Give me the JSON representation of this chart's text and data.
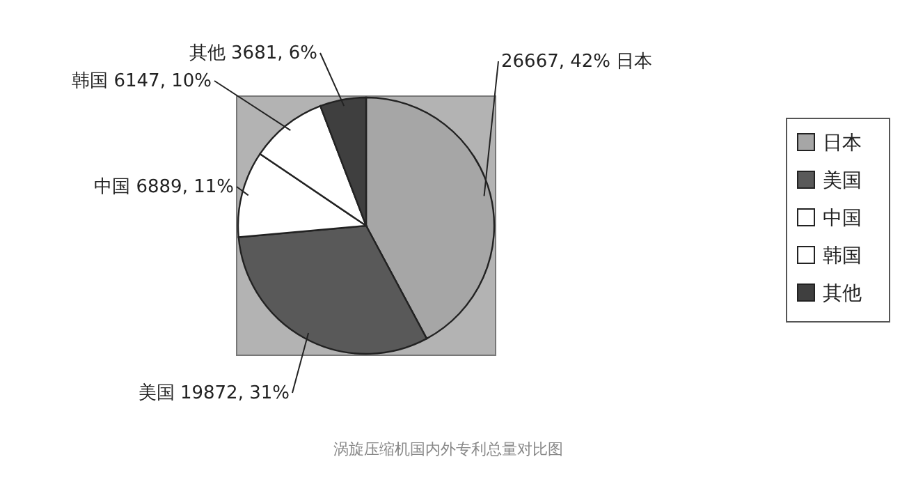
{
  "chart_data": {
    "type": "pie",
    "categories": [
      "日本",
      "美国",
      "中国",
      "韩国",
      "其他"
    ],
    "values": [
      26667,
      19872,
      6889,
      6147,
      3681
    ],
    "value_labels": [
      "26667, 42%",
      "19872, 31%",
      "6889, 11%",
      "6147, 10%",
      "3681, 6%"
    ],
    "colors": [
      "#a6a6a6",
      "#595959",
      "#ffffff",
      "#ffffff",
      "#3f3f3f"
    ],
    "legend": "right",
    "annotations": [
      "涡旋压缩机国内外专利总量对比图"
    ]
  }
}
